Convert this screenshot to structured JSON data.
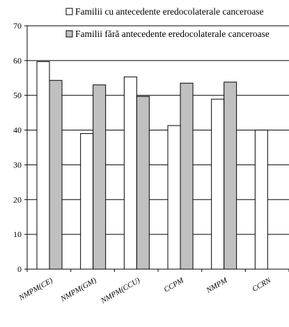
{
  "chart_data": {
    "type": "bar",
    "categories": [
      "NMPM(CE)",
      "NMPM(GM)",
      "NMPM(CCU)",
      "CCPM",
      "NMPM",
      "CCRN"
    ],
    "series": [
      {
        "name": "Familii cu antecedente eredocolaterale canceroase",
        "values": [
          59.7,
          39.0,
          55.3,
          41.3,
          48.9,
          40.0
        ],
        "color": "#ffffff"
      },
      {
        "name": "Familii fără antecedente eredocolaterale canceroase",
        "values": [
          54.3,
          53.0,
          49.7,
          53.5,
          53.8,
          null
        ],
        "color": "#c0c0c0"
      }
    ],
    "y_ticks": [
      "0",
      "10",
      "20",
      "30",
      "40",
      "50",
      "60",
      "70"
    ],
    "ylim": [
      0,
      70
    ],
    "grid": true,
    "legend_position": "top-right",
    "title": "",
    "xlabel": "",
    "ylabel": ""
  }
}
